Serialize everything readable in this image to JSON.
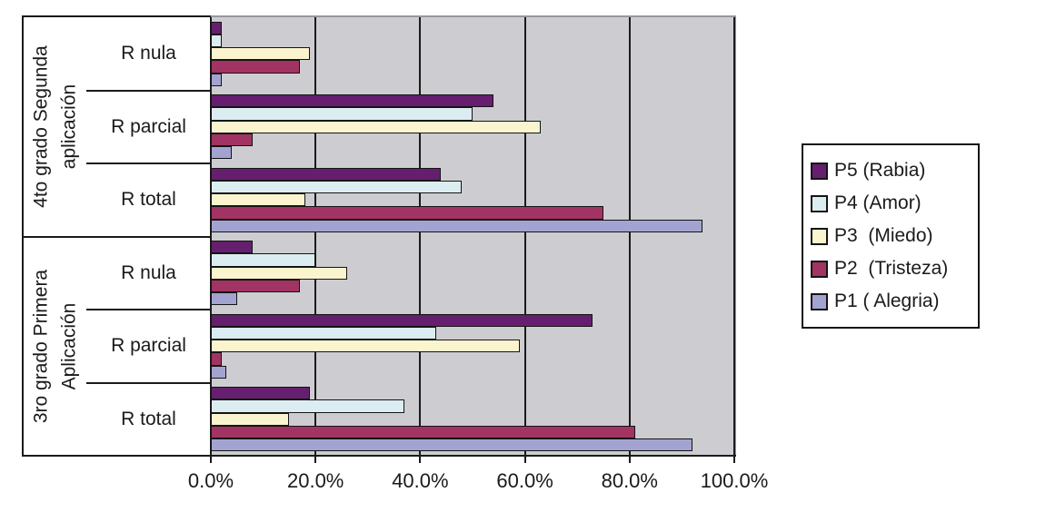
{
  "chart_data": {
    "type": "bar",
    "orientation": "horizontal",
    "title": "",
    "xlabel": "",
    "ylabel": "",
    "xlim": [
      0,
      100
    ],
    "grid": true,
    "legend_position": "right",
    "plot_bg_color": "#CDCDD1",
    "plot_border_color": "#97979D",
    "line_color": "#1a1a1a",
    "x_axis": {
      "tick_labels": [
        "0.0%",
        "20.0%",
        "40.0%",
        "60.0%",
        "80.0%",
        "100.0%"
      ],
      "tick_values": [
        0,
        20,
        40,
        60,
        80,
        100
      ]
    },
    "series": [
      {
        "key": "P5",
        "name": "P5 (Rabia)",
        "color": "#661F6E"
      },
      {
        "key": "P4",
        "name": "P4 (Amor)",
        "color": "#DCEDF1"
      },
      {
        "key": "P3",
        "name": "P3  (Miedo)",
        "color": "#FBF5CF"
      },
      {
        "key": "P2",
        "name": "P2  (Tristeza)",
        "color": "#A23463"
      },
      {
        "key": "P1",
        "name": "P1 ( Alegria)",
        "color": "#A3A3D2"
      }
    ],
    "groups": [
      {
        "label_lines": [
          "4to grado Segunda",
          "aplicación"
        ],
        "categories": [
          {
            "label": "R nula",
            "values": {
              "P5": 2,
              "P4": 2,
              "P3": 19,
              "P2": 17,
              "P1": 2
            }
          },
          {
            "label": "R parcial",
            "values": {
              "P5": 54,
              "P4": 50,
              "P3": 63,
              "P2": 8,
              "P1": 4
            }
          },
          {
            "label": "R total",
            "values": {
              "P5": 44,
              "P4": 48,
              "P3": 18,
              "P2": 75,
              "P1": 94
            }
          }
        ]
      },
      {
        "label_lines": [
          "3ro grado  Primera",
          "Aplicación"
        ],
        "categories": [
          {
            "label": "R nula",
            "values": {
              "P5": 8,
              "P4": 20,
              "P3": 26,
              "P2": 17,
              "P1": 5
            }
          },
          {
            "label": "R parcial",
            "values": {
              "P5": 73,
              "P4": 43,
              "P3": 59,
              "P2": 2,
              "P1": 3
            }
          },
          {
            "label": "R total",
            "values": {
              "P5": 19,
              "P4": 37,
              "P3": 15,
              "P2": 81,
              "P1": 92
            }
          }
        ]
      }
    ]
  }
}
